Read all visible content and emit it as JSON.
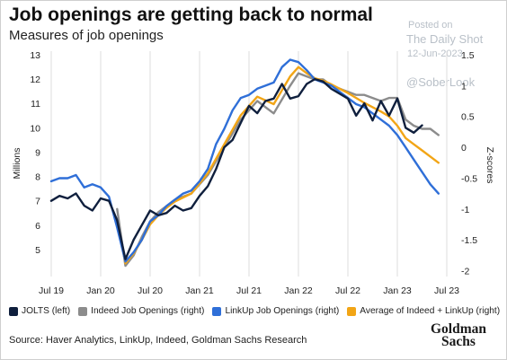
{
  "header": {
    "title": "Job openings are getting back to normal",
    "subtitle": "Measures of job openings"
  },
  "watermark": {
    "posted": "Posted on",
    "site": "The Daily Shot",
    "date": "12-Jun-2023",
    "handle": "@SoberLook"
  },
  "source": "Source: Haver Analytics, LinkUp, Indeed, Goldman Sachs Research",
  "logo": {
    "line1": "Goldman",
    "line2": "Sachs"
  },
  "chart_data": {
    "type": "line",
    "ylabel": "Millions",
    "y2label": "Z-scores",
    "ylim": [
      4,
      13
    ],
    "y2lim": [
      -2.05,
      1.5
    ],
    "xlim": [
      "2019-07",
      "2023-07"
    ],
    "grid": "vertical",
    "legend_position": "bottom",
    "x_ticks": [
      "Jul 19",
      "Jan 20",
      "Jul 20",
      "Jan 21",
      "Jul 21",
      "Jan 22",
      "Jul 22",
      "Jan 23",
      "Jul 23"
    ],
    "y_ticks": [
      "5",
      "6",
      "7",
      "8",
      "9",
      "10",
      "11",
      "12",
      "13"
    ],
    "y2_ticks": [
      "-2",
      "-1.5",
      "-1",
      "-0.5",
      "0",
      "0.5",
      "1",
      "1.5"
    ],
    "series": [
      {
        "name": "JOLTS (left)",
        "axis": "left",
        "color": "#0f1f3d",
        "x": [
          "2019-07",
          "2019-08",
          "2019-09",
          "2019-10",
          "2019-11",
          "2019-12",
          "2020-01",
          "2020-02",
          "2020-03",
          "2020-04",
          "2020-05",
          "2020-06",
          "2020-07",
          "2020-08",
          "2020-09",
          "2020-10",
          "2020-11",
          "2020-12",
          "2021-01",
          "2021-02",
          "2021-03",
          "2021-04",
          "2021-05",
          "2021-06",
          "2021-07",
          "2021-08",
          "2021-09",
          "2021-10",
          "2021-11",
          "2021-12",
          "2022-01",
          "2022-02",
          "2022-03",
          "2022-04",
          "2022-05",
          "2022-06",
          "2022-07",
          "2022-08",
          "2022-09",
          "2022-10",
          "2022-11",
          "2022-12",
          "2023-01",
          "2023-02",
          "2023-03",
          "2023-04"
        ],
        "values": [
          7.0,
          7.2,
          7.1,
          7.3,
          6.8,
          6.6,
          7.1,
          7.0,
          6.2,
          4.6,
          5.4,
          6.0,
          6.6,
          6.4,
          6.5,
          6.8,
          6.6,
          6.7,
          7.2,
          7.6,
          8.3,
          9.2,
          9.5,
          10.2,
          10.9,
          10.6,
          11.1,
          11.2,
          11.8,
          11.2,
          11.3,
          11.8,
          12.0,
          11.9,
          11.6,
          11.4,
          11.2,
          10.5,
          11.0,
          10.3,
          11.1,
          10.5,
          11.2,
          10.0,
          9.8,
          10.1
        ]
      },
      {
        "name": "Indeed Job Openings (right)",
        "axis": "right",
        "color": "#8c8c8c",
        "x": [
          "2019-07",
          "2019-09",
          "2019-11",
          "2020-01",
          "2020-02",
          "2020-03",
          "2020-04",
          "2020-05",
          "2020-06",
          "2020-07",
          "2020-08",
          "2020-09",
          "2020-10",
          "2020-12",
          "2021-02",
          "2021-04",
          "2021-06",
          "2021-08",
          "2021-10",
          "2021-12",
          "2022-01",
          "2022-02",
          "2022-03",
          "2022-04",
          "2022-05",
          "2022-06",
          "2022-07",
          "2022-08",
          "2022-09",
          "2022-10",
          "2022-11",
          "2022-12",
          "2023-01",
          "2023-02",
          "2023-03",
          "2023-04",
          "2023-05",
          "2023-06"
        ],
        "values": [
          null,
          null,
          null,
          null,
          null,
          -1.0,
          -1.92,
          -1.75,
          -1.45,
          -1.2,
          -1.05,
          -0.95,
          -0.85,
          -0.75,
          -0.45,
          0.0,
          0.45,
          0.75,
          0.55,
          1.0,
          1.2,
          1.15,
          1.1,
          1.1,
          1.0,
          0.95,
          0.9,
          0.85,
          0.85,
          0.8,
          0.75,
          0.8,
          0.8,
          0.45,
          0.35,
          0.3,
          0.3,
          0.2
        ]
      },
      {
        "name": "LinkUp Job Openings (right)",
        "axis": "right",
        "color": "#2f6fd8",
        "x": [
          "2019-07",
          "2019-08",
          "2019-09",
          "2019-10",
          "2019-11",
          "2019-12",
          "2020-01",
          "2020-02",
          "2020-03",
          "2020-04",
          "2020-05",
          "2020-06",
          "2020-07",
          "2020-08",
          "2020-09",
          "2020-10",
          "2020-11",
          "2020-12",
          "2021-01",
          "2021-02",
          "2021-03",
          "2021-04",
          "2021-05",
          "2021-06",
          "2021-07",
          "2021-08",
          "2021-09",
          "2021-10",
          "2021-11",
          "2021-12",
          "2022-01",
          "2022-02",
          "2022-03",
          "2022-04",
          "2022-05",
          "2022-06",
          "2022-07",
          "2022-08",
          "2022-09",
          "2022-10",
          "2022-11",
          "2022-12",
          "2023-01",
          "2023-02",
          "2023-03",
          "2023-04",
          "2023-05",
          "2023-06"
        ],
        "values": [
          -0.55,
          -0.5,
          -0.5,
          -0.45,
          -0.65,
          -0.6,
          -0.65,
          -0.8,
          -1.3,
          -1.85,
          -1.7,
          -1.5,
          -1.2,
          -1.1,
          -0.95,
          -0.85,
          -0.75,
          -0.7,
          -0.55,
          -0.35,
          0.05,
          0.3,
          0.6,
          0.8,
          0.85,
          0.95,
          1.0,
          1.05,
          1.3,
          1.42,
          1.38,
          1.25,
          1.1,
          1.05,
          1.0,
          0.9,
          0.8,
          0.7,
          0.65,
          0.55,
          0.45,
          0.35,
          0.2,
          0.0,
          -0.2,
          -0.4,
          -0.6,
          -0.75
        ]
      },
      {
        "name": "Average of Indeed + LinkUp (right)",
        "axis": "right",
        "color": "#f2a516",
        "x": [
          "2019-07",
          "2019-09",
          "2019-11",
          "2020-01",
          "2020-02",
          "2020-03",
          "2020-04",
          "2020-05",
          "2020-06",
          "2020-07",
          "2020-08",
          "2020-09",
          "2020-10",
          "2020-12",
          "2021-02",
          "2021-04",
          "2021-06",
          "2021-08",
          "2021-10",
          "2021-12",
          "2022-01",
          "2022-02",
          "2022-03",
          "2022-04",
          "2022-05",
          "2022-06",
          "2022-07",
          "2022-08",
          "2022-09",
          "2022-10",
          "2022-11",
          "2022-12",
          "2023-01",
          "2023-02",
          "2023-03",
          "2023-04",
          "2023-05",
          "2023-06"
        ],
        "values": [
          null,
          null,
          null,
          null,
          null,
          -1.2,
          -1.88,
          -1.72,
          -1.5,
          -1.25,
          -1.1,
          -0.98,
          -0.88,
          -0.75,
          -0.42,
          0.05,
          0.52,
          0.82,
          0.7,
          1.15,
          1.3,
          1.2,
          1.12,
          1.08,
          1.02,
          0.95,
          0.88,
          0.8,
          0.72,
          0.65,
          0.58,
          0.5,
          0.35,
          0.15,
          0.05,
          -0.05,
          -0.15,
          -0.25
        ]
      }
    ]
  }
}
